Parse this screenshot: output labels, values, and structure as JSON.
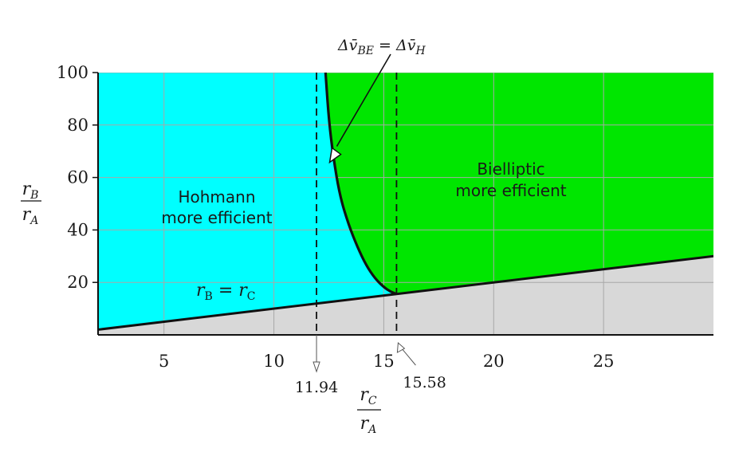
{
  "chart_data": {
    "type": "area",
    "title": "",
    "xlim": [
      2,
      30
    ],
    "ylim": [
      0,
      100
    ],
    "x_ticks": [
      5,
      10,
      15,
      20,
      25
    ],
    "y_ticks": [
      20,
      40,
      60,
      80,
      100
    ],
    "grid": true,
    "xlabel": {
      "top": "r_C",
      "bottom": "r_A"
    },
    "ylabel": {
      "top": "r_B",
      "bottom": "r_A"
    },
    "colors": {
      "hohmann": "#00ffff",
      "bielliptic": "#00e600",
      "infeasible": "#d8d8d8",
      "grid": "#a8a8a8",
      "ink": "#111111"
    },
    "regions": {
      "hohmann": {
        "line1": "Hohmann",
        "line2": "more efficient"
      },
      "bielliptic": {
        "line1": "Bielliptic",
        "line2": "more efficient"
      }
    },
    "boundary_curve": {
      "x": [
        12.35,
        12.5,
        12.7,
        13.0,
        13.4,
        13.8,
        14.2,
        14.6,
        15.0,
        15.3,
        15.58
      ],
      "y": [
        100,
        82,
        68,
        53,
        42,
        33.5,
        26.5,
        21.5,
        18.2,
        16.5,
        15.58
      ]
    },
    "diagonal_line": {
      "x": [
        2,
        30
      ],
      "y": [
        2,
        30
      ],
      "label_lhs": "r",
      "label_lhs_sub": "B",
      "label_rhs": "r",
      "label_rhs_sub": "C"
    },
    "dashed_lines": [
      {
        "x": 11.94,
        "label": "11.94"
      },
      {
        "x": 15.58,
        "label": "15.58"
      }
    ],
    "annotation": {
      "text": "Δv̄",
      "sub1": "BE",
      "eq": "= Δv̄",
      "sub2": "H",
      "point_x": 12.5,
      "point_y": 67
    }
  }
}
